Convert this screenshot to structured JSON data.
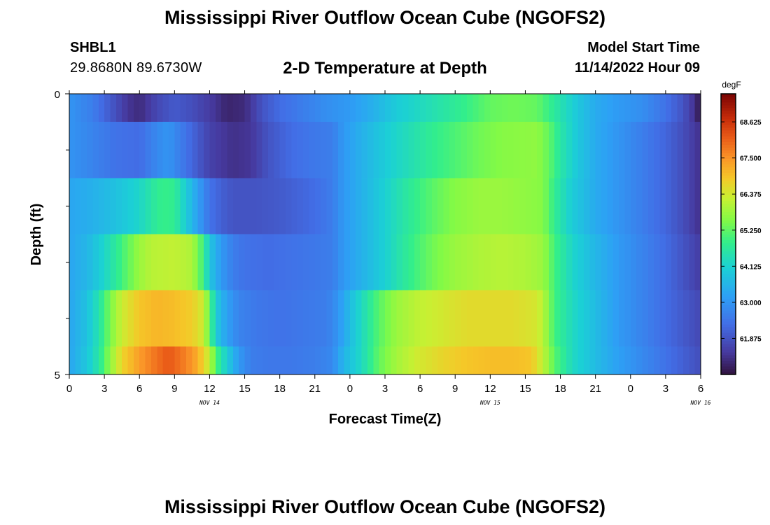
{
  "header": {
    "title": "Mississippi River Outflow Ocean Cube (NGOFS2)",
    "station_id": "SHBL1",
    "station_coords": "29.8680N  89.6730W",
    "subtitle": "2-D Temperature at Depth",
    "model_start_label": "Model Start Time",
    "model_start_value": "11/14/2022 Hour 09"
  },
  "footer": {
    "title_repeat": "Mississippi River Outflow Ocean Cube (NGOFS2)"
  },
  "chart_data": {
    "type": "heatmap",
    "title": "2-D Temperature at Depth",
    "xlabel": "Forecast Time(Z)",
    "ylabel": "Depth (ft)",
    "x_tick_labels": [
      "0",
      "3",
      "6",
      "9",
      "12",
      "15",
      "18",
      "21",
      "0",
      "3",
      "6",
      "9",
      "12",
      "15",
      "18",
      "21",
      "0",
      "3",
      "6"
    ],
    "date_labels": [
      {
        "label": "NOV 14",
        "at_hour": 12
      },
      {
        "label": "NOV 15",
        "at_hour": 36
      },
      {
        "label": "NOV 16",
        "at_hour": 54
      }
    ],
    "x_range_hours": [
      0,
      54
    ],
    "y_range_ft": [
      0,
      5
    ],
    "y_tick_labels": [
      "0",
      "5"
    ],
    "y_minor_ticks": [
      1,
      2,
      3,
      4
    ],
    "colorbar": {
      "unit": "degF",
      "min": 60.75,
      "max": 69.5,
      "tick_values": [
        61.875,
        63.0,
        64.125,
        65.25,
        66.375,
        67.5,
        68.625
      ],
      "tick_labels": [
        "61.875",
        "63.000",
        "64.125",
        "65.250",
        "66.375",
        "67.500",
        "68.625"
      ]
    },
    "layers": [
      {
        "depth_range_ft": [
          0,
          0.5
        ],
        "knots": [
          [
            0,
            63.0
          ],
          [
            2,
            62.6
          ],
          [
            3.5,
            62.0
          ],
          [
            5,
            61.4
          ],
          [
            6,
            61.2
          ],
          [
            7.5,
            61.7
          ],
          [
            9,
            62.0
          ],
          [
            10.5,
            61.8
          ],
          [
            12,
            61.5
          ],
          [
            13.5,
            61.1
          ],
          [
            15,
            61.2
          ],
          [
            16.5,
            61.9
          ],
          [
            18,
            62.3
          ],
          [
            20,
            62.6
          ],
          [
            22,
            62.9
          ],
          [
            24,
            63.1
          ],
          [
            26,
            63.5
          ],
          [
            28,
            64.0
          ],
          [
            30,
            64.3
          ],
          [
            32,
            64.6
          ],
          [
            34,
            64.9
          ],
          [
            36,
            65.3
          ],
          [
            38,
            65.4
          ],
          [
            40,
            65.3
          ],
          [
            42,
            64.5
          ],
          [
            43.5,
            63.9
          ],
          [
            45,
            63.4
          ],
          [
            47,
            63.1
          ],
          [
            49,
            62.9
          ],
          [
            51,
            62.4
          ],
          [
            52.5,
            61.9
          ],
          [
            53.5,
            61.3
          ],
          [
            54,
            60.8
          ]
        ]
      },
      {
        "depth_range_ft": [
          0.5,
          1.5
        ],
        "knots": [
          [
            0,
            63.0
          ],
          [
            2,
            62.7
          ],
          [
            4,
            62.4
          ],
          [
            6,
            62.3
          ],
          [
            7.5,
            62.8
          ],
          [
            8.5,
            63.0
          ],
          [
            9.5,
            62.6
          ],
          [
            11,
            62.0
          ],
          [
            12,
            61.6
          ],
          [
            14,
            61.3
          ],
          [
            15.5,
            61.4
          ],
          [
            17,
            61.9
          ],
          [
            19,
            62.3
          ],
          [
            21,
            62.5
          ],
          [
            22.5,
            62.6
          ],
          [
            23.5,
            63.1
          ],
          [
            25,
            63.5
          ],
          [
            27,
            64.0
          ],
          [
            29,
            64.4
          ],
          [
            31,
            64.8
          ],
          [
            33,
            65.1
          ],
          [
            35,
            65.4
          ],
          [
            37,
            65.6
          ],
          [
            40,
            65.7
          ],
          [
            41,
            65.3
          ],
          [
            42,
            64.6
          ],
          [
            43.5,
            63.9
          ],
          [
            45,
            63.4
          ],
          [
            47,
            63.0
          ],
          [
            49,
            62.6
          ],
          [
            51,
            62.2
          ],
          [
            52.5,
            61.8
          ],
          [
            54,
            61.3
          ]
        ]
      },
      {
        "depth_range_ft": [
          1.5,
          2.5
        ],
        "knots": [
          [
            0,
            63.3
          ],
          [
            2,
            63.5
          ],
          [
            4,
            63.8
          ],
          [
            6,
            64.2
          ],
          [
            7,
            64.6
          ],
          [
            8,
            64.9
          ],
          [
            9,
            64.8
          ],
          [
            10,
            64.0
          ],
          [
            11,
            63.2
          ],
          [
            12,
            62.4
          ],
          [
            13,
            62.1
          ],
          [
            14,
            61.9
          ],
          [
            16,
            61.9
          ],
          [
            18,
            62.0
          ],
          [
            20,
            62.2
          ],
          [
            21.5,
            62.4
          ],
          [
            22.5,
            62.6
          ],
          [
            23.5,
            63.1
          ],
          [
            25,
            63.5
          ],
          [
            27,
            64.1
          ],
          [
            29,
            64.7
          ],
          [
            31,
            65.2
          ],
          [
            33,
            65.6
          ],
          [
            35,
            65.8
          ],
          [
            37,
            65.8
          ],
          [
            39,
            65.7
          ],
          [
            40.5,
            65.6
          ],
          [
            41.5,
            64.8
          ],
          [
            43,
            64.0
          ],
          [
            45,
            63.4
          ],
          [
            47,
            63.0
          ],
          [
            49,
            62.6
          ],
          [
            51,
            62.2
          ],
          [
            52.5,
            61.8
          ],
          [
            54,
            61.3
          ]
        ]
      },
      {
        "depth_range_ft": [
          2.5,
          3.5
        ],
        "knots": [
          [
            0,
            63.3
          ],
          [
            1.5,
            63.6
          ],
          [
            3,
            64.2
          ],
          [
            4.5,
            65.0
          ],
          [
            6,
            65.8
          ],
          [
            7,
            66.1
          ],
          [
            9,
            66.2
          ],
          [
            10.5,
            66.0
          ],
          [
            11.5,
            64.9
          ],
          [
            12,
            63.9
          ],
          [
            13,
            63.1
          ],
          [
            14,
            62.6
          ],
          [
            15,
            62.4
          ],
          [
            17,
            62.3
          ],
          [
            19,
            62.4
          ],
          [
            21,
            62.5
          ],
          [
            22.5,
            62.6
          ],
          [
            23.5,
            63.1
          ],
          [
            25,
            63.5
          ],
          [
            27,
            64.1
          ],
          [
            29,
            64.8
          ],
          [
            31,
            65.4
          ],
          [
            33,
            65.8
          ],
          [
            35,
            66.0
          ],
          [
            37,
            66.1
          ],
          [
            39,
            66.0
          ],
          [
            40.5,
            65.8
          ],
          [
            41.5,
            65.0
          ],
          [
            43,
            64.2
          ],
          [
            45,
            63.6
          ],
          [
            47,
            63.1
          ],
          [
            49,
            62.7
          ],
          [
            51,
            62.3
          ],
          [
            52.5,
            61.9
          ],
          [
            54,
            61.5
          ]
        ]
      },
      {
        "depth_range_ft": [
          3.5,
          4.5
        ],
        "knots": [
          [
            0,
            63.3
          ],
          [
            1.5,
            63.8
          ],
          [
            2.5,
            64.5
          ],
          [
            3.5,
            65.5
          ],
          [
            4.5,
            66.3
          ],
          [
            6,
            66.9
          ],
          [
            7.5,
            67.1
          ],
          [
            9,
            67.0
          ],
          [
            10.5,
            66.8
          ],
          [
            11.5,
            66.3
          ],
          [
            12,
            65.2
          ],
          [
            12.5,
            64.0
          ],
          [
            13.5,
            63.2
          ],
          [
            14.5,
            62.7
          ],
          [
            16,
            62.5
          ],
          [
            18,
            62.4
          ],
          [
            20,
            62.5
          ],
          [
            22,
            62.6
          ],
          [
            23,
            63.0
          ],
          [
            24,
            63.7
          ],
          [
            25,
            64.3
          ],
          [
            26.5,
            65.2
          ],
          [
            28,
            65.8
          ],
          [
            30,
            66.2
          ],
          [
            32,
            66.4
          ],
          [
            34,
            66.6
          ],
          [
            36,
            66.6
          ],
          [
            38,
            66.6
          ],
          [
            40,
            66.4
          ],
          [
            40.5,
            66.1
          ],
          [
            41.5,
            65.0
          ],
          [
            43,
            64.3
          ],
          [
            45,
            63.7
          ],
          [
            47,
            63.1
          ],
          [
            49,
            62.7
          ],
          [
            51,
            62.3
          ],
          [
            53,
            61.9
          ],
          [
            54,
            61.7
          ]
        ]
      },
      {
        "depth_range_ft": [
          4.5,
          5
        ],
        "knots": [
          [
            0,
            63.3
          ],
          [
            1.5,
            63.9
          ],
          [
            2.5,
            64.6
          ],
          [
            3.5,
            65.7
          ],
          [
            4.5,
            66.7
          ],
          [
            6,
            67.4
          ],
          [
            7.5,
            67.9
          ],
          [
            8.5,
            68.2
          ],
          [
            10,
            67.7
          ],
          [
            11,
            67.2
          ],
          [
            12,
            66.2
          ],
          [
            12.5,
            65.1
          ],
          [
            13.5,
            64.0
          ],
          [
            14.5,
            63.1
          ],
          [
            15.5,
            62.6
          ],
          [
            17,
            62.5
          ],
          [
            19,
            62.5
          ],
          [
            21,
            62.6
          ],
          [
            22.5,
            62.8
          ],
          [
            23.5,
            63.6
          ],
          [
            25,
            64.3
          ],
          [
            26.5,
            65.3
          ],
          [
            28,
            65.9
          ],
          [
            30,
            66.4
          ],
          [
            32,
            66.7
          ],
          [
            34,
            66.9
          ],
          [
            36,
            67.0
          ],
          [
            38,
            67.0
          ],
          [
            39.5,
            66.9
          ],
          [
            40.5,
            66.2
          ],
          [
            41.5,
            65.2
          ],
          [
            43,
            64.3
          ],
          [
            45,
            63.7
          ],
          [
            47,
            63.2
          ],
          [
            49,
            62.8
          ],
          [
            51,
            62.4
          ],
          [
            53,
            62.0
          ],
          [
            54,
            61.8
          ]
        ]
      }
    ]
  }
}
